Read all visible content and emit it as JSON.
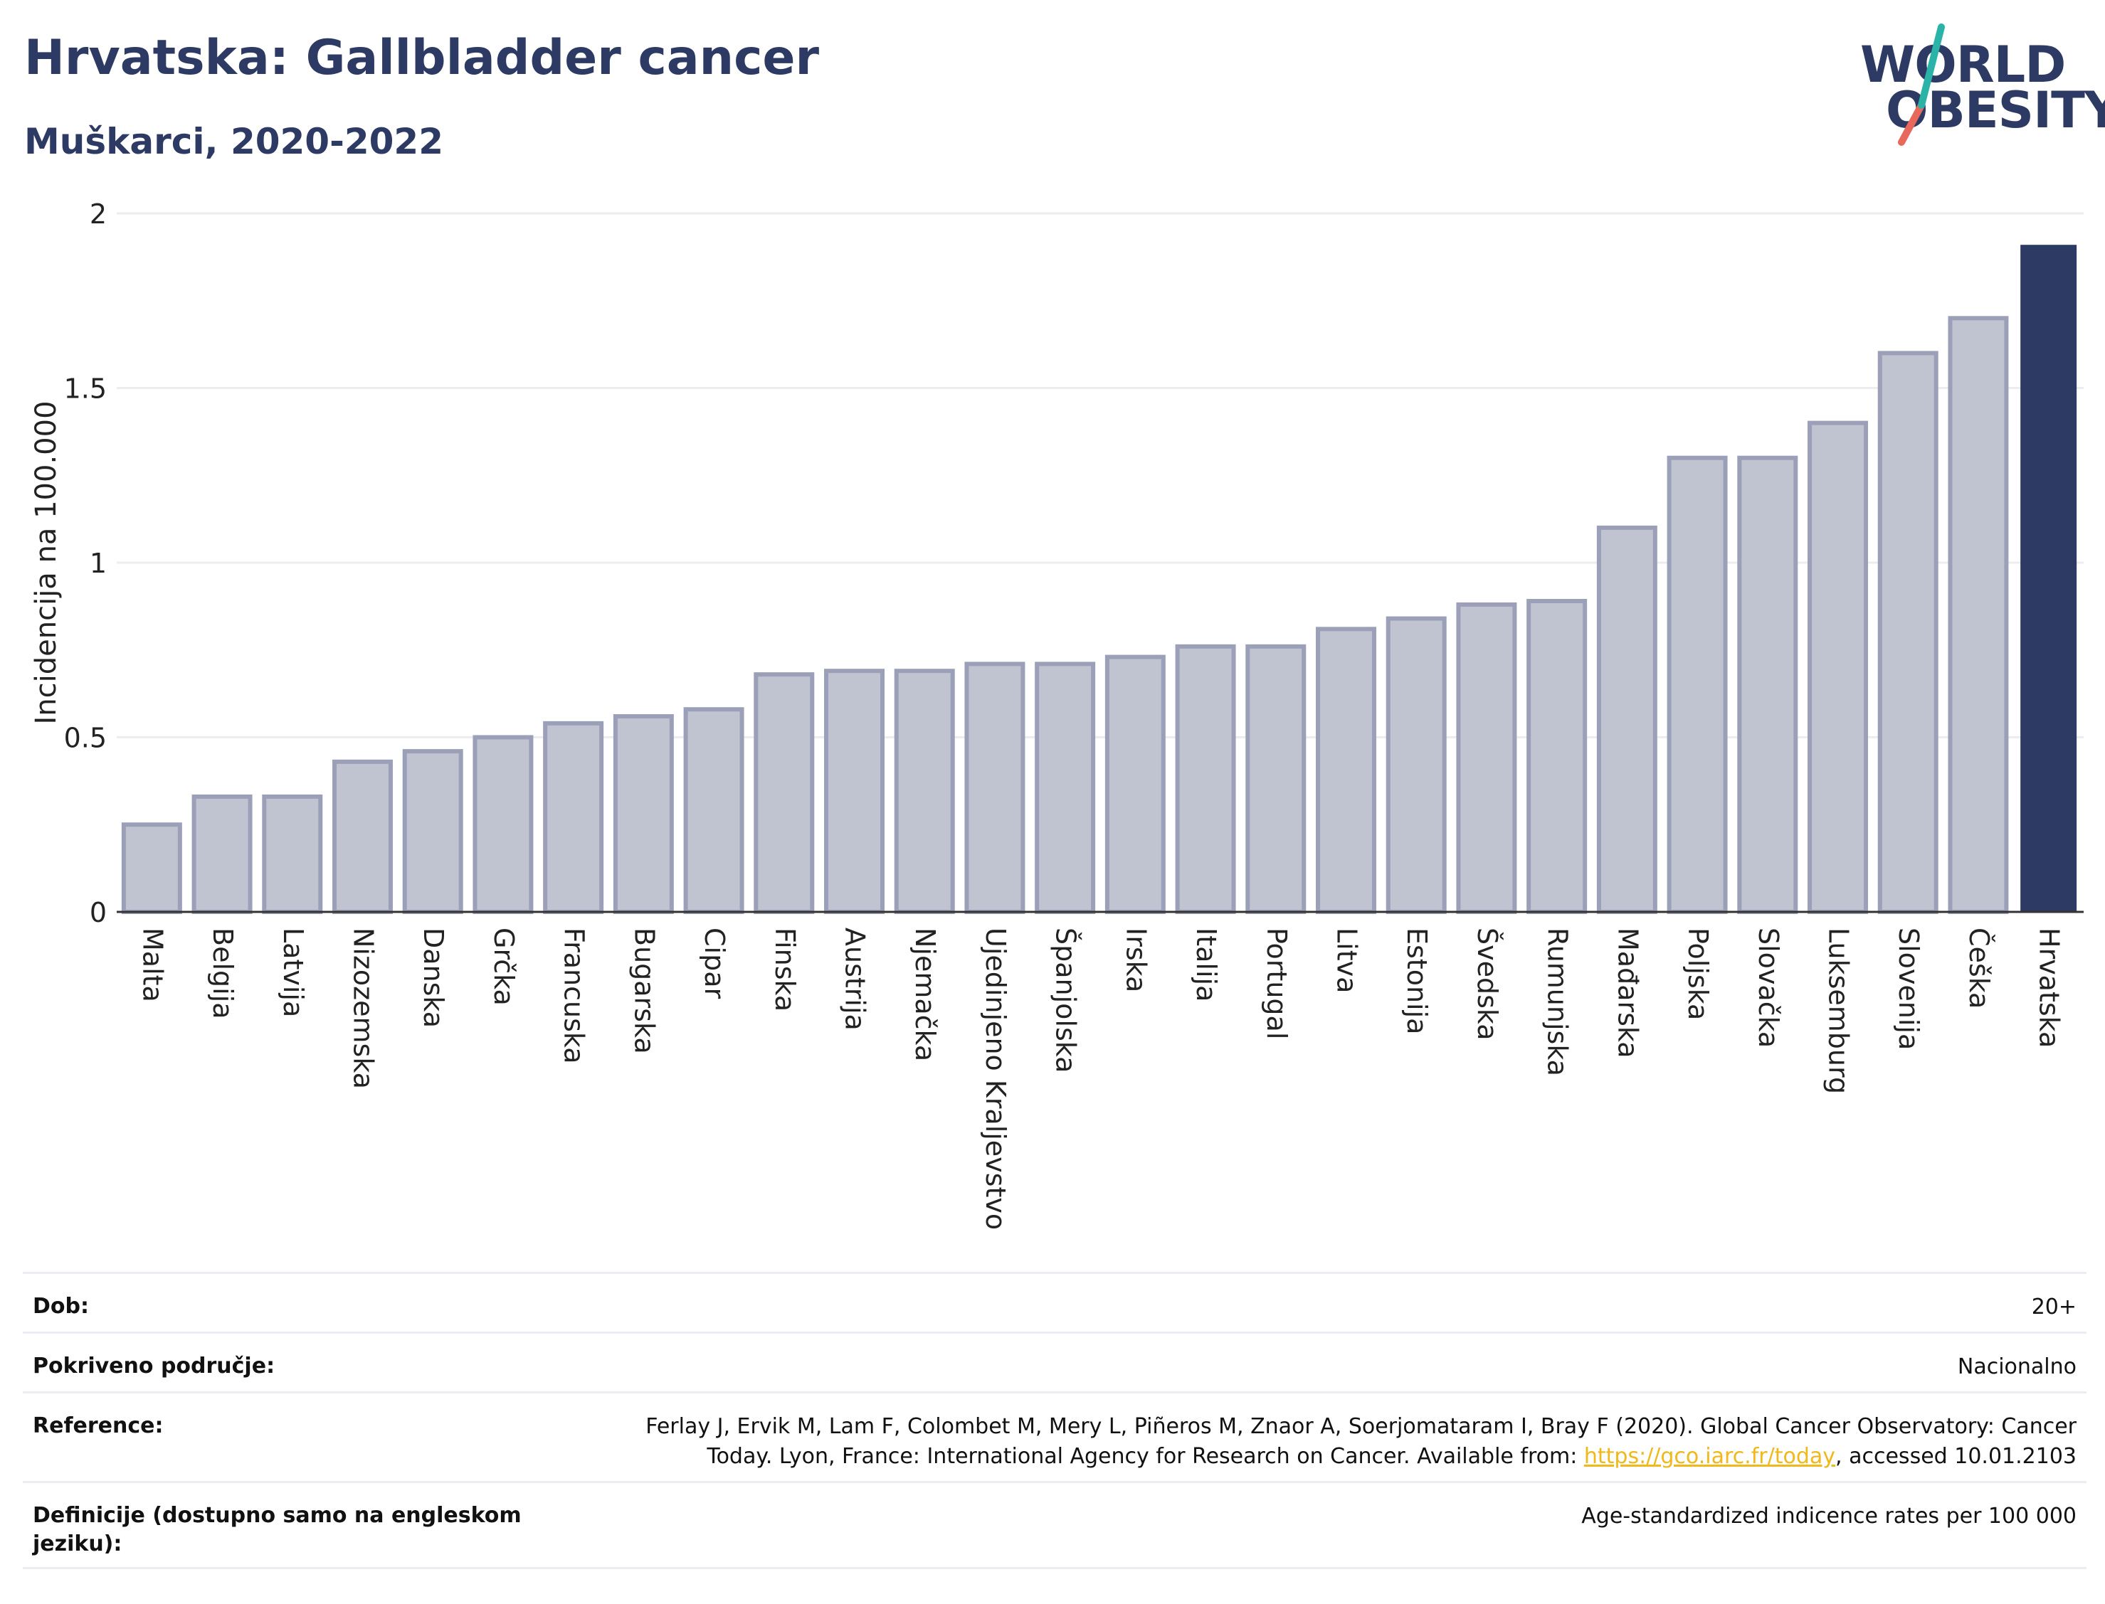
{
  "header": {
    "title": "Hrvatska: Gallbladder cancer",
    "subtitle": "Muškarci, 2020-2022"
  },
  "logo": {
    "line1": "WORLD",
    "line2": "OBESITY",
    "icon": "world-obesity-slash",
    "colors": {
      "text": "#2d3a63",
      "slash_top": "#2bb3a7",
      "slash_bottom": "#e8685b"
    }
  },
  "chart_data": {
    "type": "bar",
    "ylabel": "Incidencija na 100.000",
    "ylim": [
      0,
      2
    ],
    "yticks": [
      0,
      0.5,
      1,
      1.5,
      2
    ],
    "ytick_labels": [
      "0",
      "0.5",
      "1",
      "1.5",
      "2"
    ],
    "grid": true,
    "categories": [
      "Malta",
      "Belgija",
      "Latvija",
      "Nizozemska",
      "Danska",
      "Grčka",
      "Francuska",
      "Bugarska",
      "Cipar",
      "Finska",
      "Austrija",
      "Njemačka",
      "Ujedinjeno Kraljevstvo",
      "Španjolska",
      "Irska",
      "Italija",
      "Portugal",
      "Litva",
      "Estonija",
      "Švedska",
      "Rumunjska",
      "Mađarska",
      "Poljska",
      "Slovačka",
      "Luksemburg",
      "Slovenija",
      "Češka",
      "Hrvatska"
    ],
    "values": [
      0.25,
      0.33,
      0.33,
      0.43,
      0.46,
      0.5,
      0.54,
      0.56,
      0.58,
      0.68,
      0.69,
      0.69,
      0.71,
      0.71,
      0.73,
      0.76,
      0.76,
      0.81,
      0.84,
      0.88,
      0.89,
      1.1,
      1.3,
      1.3,
      1.4,
      1.6,
      1.7,
      1.91
    ],
    "highlight": "Hrvatska",
    "colors": {
      "bar": "#c0c3d0",
      "bar_border": "#9ba0b8",
      "highlight": "#2d3a63"
    }
  },
  "info": [
    {
      "label": "Dob:",
      "value": "20+"
    },
    {
      "label": "Pokriveno područje:",
      "value": "Nacionalno"
    },
    {
      "label": "Reference:",
      "value_line1": "Ferlay J, Ervik M, Lam F, Colombet M, Mery L, Piñeros M, Znaor A, Soerjomataram I, Bray F (2020). Global Cancer Observatory: Cancer",
      "value_line2_pre": "Today. Lyon, France: International Agency for Research on Cancer. Available from: ",
      "link": "https://gco.iarc.fr/today",
      "value_line2_post": ", accessed 10.01.2103"
    },
    {
      "label_line1": "Definicije (dostupno samo na engleskom",
      "label_line2": "jeziku):",
      "value": "Age-standardized indicence rates per 100 000"
    }
  ]
}
